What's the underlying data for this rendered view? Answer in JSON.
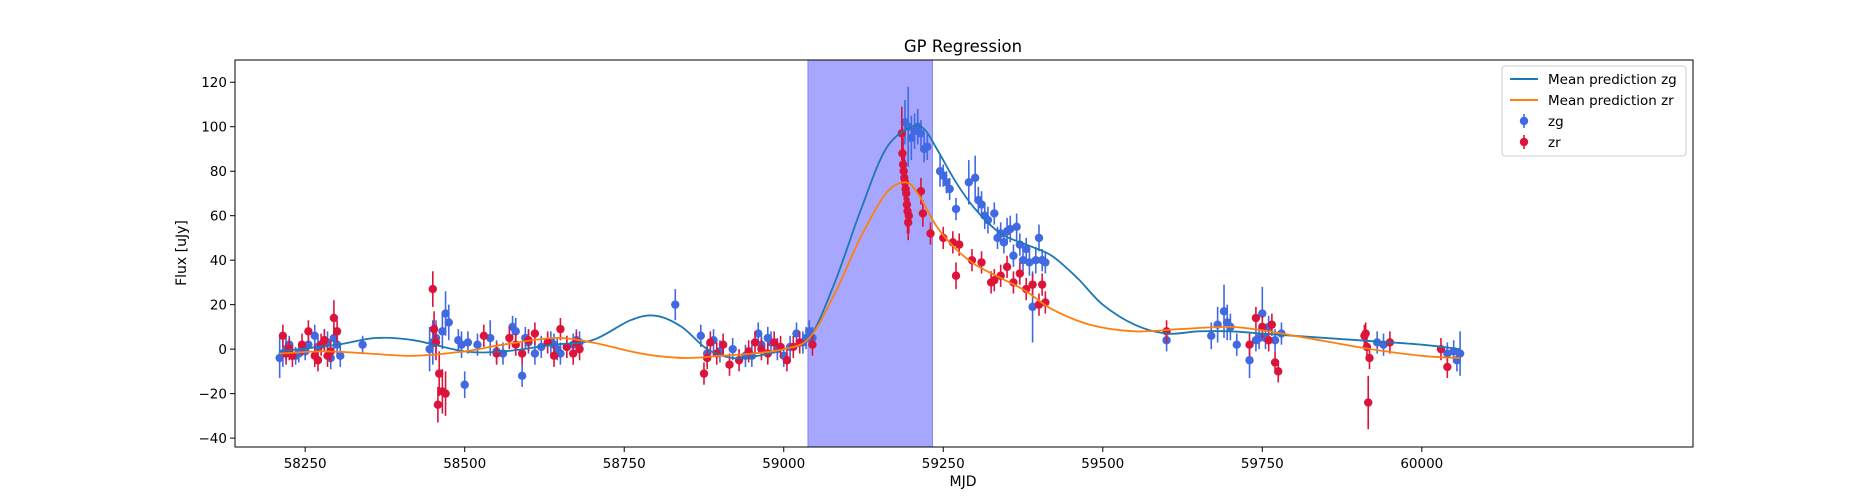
{
  "chart_data": {
    "type": "scatter",
    "title": "GP Regression",
    "xlabel": "MJD",
    "ylabel": "Flux [uJy]",
    "xlim": [
      58140,
      60425
    ],
    "ylim": [
      -44,
      130
    ],
    "xticks": [
      58250,
      58500,
      58750,
      59000,
      59250,
      59500,
      59750,
      60000
    ],
    "yticks": [
      -40,
      -20,
      0,
      20,
      40,
      60,
      80,
      100,
      120
    ],
    "grid": false,
    "legend_position": "top-right",
    "shaded_region": {
      "x_start": 59038,
      "x_end": 59233,
      "color": "#a7a7ff"
    },
    "lines": [
      {
        "name": "Mean prediction zg",
        "color": "#1f77b4",
        "x": [
          58210,
          58300,
          58360,
          58420,
          58500,
          58560,
          58640,
          58700,
          58760,
          58800,
          58840,
          58880,
          58920,
          58960,
          59000,
          59040,
          59080,
          59120,
          59160,
          59200,
          59220,
          59240,
          59270,
          59300,
          59340,
          59380,
          59420,
          59460,
          59500,
          59550,
          59600,
          59650,
          59700,
          59750,
          59800,
          59900,
          60000,
          60060
        ],
        "y": [
          -1,
          2,
          5,
          4,
          -1,
          -1,
          2,
          4,
          13,
          15,
          10,
          0,
          -4,
          -3,
          0,
          5,
          30,
          62,
          90,
          100,
          99,
          90,
          75,
          63,
          52,
          47,
          42,
          32,
          20,
          11,
          7,
          8,
          8,
          7,
          6,
          4,
          2,
          0
        ]
      },
      {
        "name": "Mean prediction zr",
        "color": "#ff7f0e",
        "x": [
          58210,
          58280,
          58350,
          58420,
          58500,
          58560,
          58640,
          58700,
          58760,
          58800,
          58850,
          58900,
          58950,
          59000,
          59040,
          59080,
          59120,
          59160,
          59190,
          59210,
          59240,
          59270,
          59300,
          59340,
          59380,
          59420,
          59480,
          59550,
          59620,
          59700,
          59760,
          59800,
          59860,
          59920,
          60000,
          60060
        ],
        "y": [
          -2,
          -1,
          -2,
          -3,
          -1,
          2,
          5,
          3,
          -1,
          -3,
          -4,
          -3,
          -2,
          0,
          5,
          25,
          50,
          70,
          75,
          70,
          55,
          45,
          38,
          32,
          26,
          18,
          11,
          8,
          9,
          10,
          8,
          6,
          3,
          0,
          -3,
          -4
        ]
      }
    ],
    "series": [
      {
        "name": "zg",
        "color": "#4169e1",
        "x": [
          58210,
          58215,
          58220,
          58225,
          58235,
          58240,
          58250,
          58255,
          58265,
          58270,
          58280,
          58285,
          58290,
          58295,
          58300,
          58305,
          58340,
          58445,
          58450,
          58455,
          58465,
          58470,
          58475,
          58490,
          58495,
          58500,
          58505,
          58520,
          58540,
          58550,
          58560,
          58575,
          58580,
          58590,
          58595,
          58600,
          58610,
          58620,
          58635,
          58640,
          58645,
          58650,
          58660,
          58670,
          58675,
          58680,
          58830,
          58870,
          58880,
          58890,
          58900,
          58920,
          58940,
          58950,
          58960,
          58965,
          58975,
          58980,
          58990,
          59000,
          59010,
          59020,
          59030,
          59035,
          59040,
          59045,
          59190,
          59195,
          59200,
          59205,
          59210,
          59215,
          59220,
          59225,
          59245,
          59250,
          59255,
          59260,
          59270,
          59290,
          59300,
          59305,
          59310,
          59315,
          59320,
          59330,
          59335,
          59340,
          59345,
          59350,
          59355,
          59360,
          59365,
          59370,
          59375,
          59380,
          59385,
          59390,
          59395,
          59400,
          59405,
          59410,
          59600,
          59670,
          59680,
          59690,
          59695,
          59700,
          59710,
          59730,
          59740,
          59745,
          59750,
          59755,
          59760,
          59770,
          59780,
          59930,
          59940,
          60040,
          60050,
          60055,
          60060
        ],
        "y": [
          -4,
          -2,
          0,
          2,
          -3,
          -2,
          -1,
          2,
          6,
          1,
          4,
          3,
          -4,
          5,
          2,
          -3,
          2,
          0,
          3,
          5,
          8,
          16,
          12,
          4,
          2,
          -16,
          3,
          2,
          5,
          -1,
          -2,
          10,
          8,
          -12,
          5,
          3,
          -2,
          1,
          3,
          2,
          0,
          -2,
          1,
          2,
          4,
          3,
          20,
          6,
          -2,
          4,
          -1,
          0,
          -3,
          -3,
          7,
          2,
          5,
          3,
          0,
          -3,
          1,
          7,
          3,
          5,
          8,
          5,
          102,
          100,
          95,
          98,
          100,
          97,
          90,
          91,
          80,
          78,
          75,
          72,
          63,
          75,
          77,
          67,
          65,
          60,
          58,
          61,
          50,
          52,
          48,
          53,
          54,
          42,
          55,
          47,
          40,
          45,
          39,
          19,
          40,
          50,
          40,
          39,
          4,
          6,
          11,
          17,
          12,
          10,
          2,
          -5,
          4,
          5,
          16,
          5,
          10,
          4,
          7,
          3,
          2,
          -2,
          -1,
          -5,
          -2
        ],
        "yerr": [
          9,
          6,
          5,
          4,
          4,
          4,
          4,
          4,
          5,
          4,
          5,
          5,
          5,
          5,
          5,
          5,
          4,
          10,
          10,
          8,
          8,
          10,
          8,
          5,
          6,
          6,
          5,
          5,
          8,
          5,
          5,
          5,
          6,
          5,
          5,
          5,
          5,
          5,
          5,
          5,
          5,
          5,
          5,
          5,
          5,
          5,
          7,
          5,
          5,
          5,
          5,
          5,
          5,
          5,
          5,
          5,
          5,
          5,
          5,
          5,
          5,
          5,
          5,
          5,
          5,
          5,
          10,
          18,
          10,
          8,
          8,
          6,
          6,
          6,
          7,
          5,
          5,
          5,
          5,
          10,
          10,
          6,
          6,
          6,
          6,
          5,
          5,
          5,
          5,
          6,
          6,
          5,
          6,
          5,
          5,
          5,
          6,
          16,
          6,
          6,
          5,
          5,
          5,
          6,
          8,
          12,
          8,
          6,
          5,
          8,
          5,
          5,
          12,
          5,
          5,
          5,
          5,
          5,
          5,
          5,
          5,
          5,
          10
        ]
      },
      {
        "name": "zr",
        "color": "#dc143c",
        "x": [
          58215,
          58220,
          58225,
          58230,
          58245,
          58255,
          58265,
          58270,
          58275,
          58280,
          58285,
          58290,
          58295,
          58300,
          58450,
          58452,
          58455,
          58458,
          58460,
          58465,
          58470,
          58530,
          58550,
          58570,
          58580,
          58590,
          58600,
          58610,
          58630,
          58640,
          58650,
          58660,
          58670,
          58675,
          58680,
          58875,
          58880,
          58885,
          58895,
          58905,
          58915,
          58930,
          58945,
          58955,
          58965,
          58975,
          58985,
          58995,
          59005,
          59015,
          59025,
          59045,
          59185,
          59186,
          59187,
          59188,
          59189,
          59190,
          59191,
          59192,
          59193,
          59194,
          59195,
          59196,
          59215,
          59218,
          59230,
          59250,
          59265,
          59270,
          59275,
          59295,
          59310,
          59325,
          59330,
          59340,
          59350,
          59360,
          59370,
          59380,
          59390,
          59400,
          59405,
          59410,
          59600,
          59730,
          59740,
          59750,
          59760,
          59765,
          59770,
          59775,
          59910,
          59912,
          59914,
          59916,
          59918,
          59950,
          60030,
          60040
        ],
        "y": [
          6,
          -2,
          0,
          -3,
          2,
          8,
          -3,
          -5,
          2,
          4,
          -3,
          -1,
          14,
          8,
          27,
          9,
          3,
          -25,
          -11,
          -19,
          -20,
          6,
          -2,
          5,
          2,
          -2,
          4,
          7,
          3,
          -3,
          9,
          1,
          -2,
          3,
          0,
          -11,
          -4,
          3,
          -2,
          2,
          -7,
          -5,
          -1,
          3,
          0,
          -2,
          3,
          1,
          -5,
          1,
          3,
          2,
          97,
          88,
          83,
          80,
          77,
          75,
          72,
          70,
          65,
          62,
          57,
          60,
          71,
          61,
          52,
          50,
          48,
          33,
          47,
          40,
          39,
          30,
          31,
          33,
          37,
          30,
          34,
          27,
          29,
          20,
          29,
          21,
          8,
          2,
          14,
          10,
          4,
          11,
          -6,
          -10,
          6,
          7,
          1,
          -24,
          -4,
          3,
          0,
          -8
        ],
        "yerr": [
          5,
          5,
          5,
          5,
          5,
          5,
          5,
          5,
          5,
          5,
          5,
          5,
          8,
          5,
          8,
          8,
          8,
          8,
          10,
          10,
          10,
          5,
          5,
          5,
          5,
          5,
          5,
          5,
          5,
          5,
          5,
          5,
          5,
          5,
          5,
          5,
          5,
          5,
          5,
          5,
          5,
          5,
          5,
          5,
          5,
          5,
          5,
          5,
          5,
          5,
          5,
          5,
          12,
          12,
          12,
          10,
          10,
          10,
          10,
          10,
          10,
          10,
          8,
          8,
          6,
          6,
          5,
          5,
          5,
          6,
          5,
          5,
          5,
          5,
          5,
          5,
          5,
          5,
          5,
          5,
          5,
          5,
          5,
          5,
          5,
          5,
          5,
          5,
          5,
          5,
          5,
          5,
          5,
          5,
          5,
          12,
          5,
          5,
          5,
          5
        ]
      }
    ],
    "legend": [
      {
        "label": "Mean prediction zg",
        "kind": "line",
        "color": "#1f77b4"
      },
      {
        "label": "Mean prediction zr",
        "kind": "line",
        "color": "#ff7f0e"
      },
      {
        "label": "zg",
        "kind": "point",
        "color": "#4169e1"
      },
      {
        "label": "zr",
        "kind": "point",
        "color": "#dc143c"
      }
    ]
  }
}
